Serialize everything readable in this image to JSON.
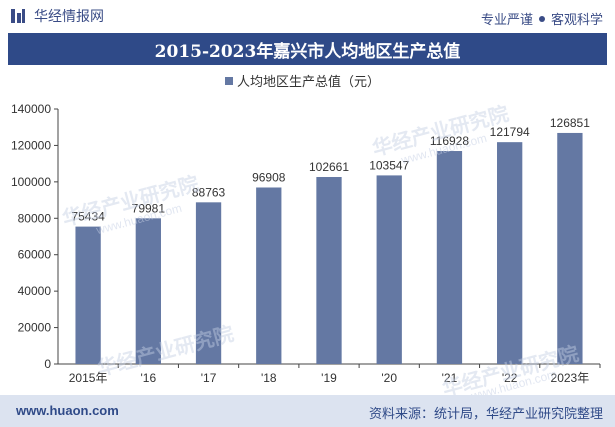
{
  "header": {
    "brand": "华经情报网",
    "tagline_left": "专业严谨",
    "tagline_right": "客观科学"
  },
  "title": "2015-2023年嘉兴市人均地区生产总值",
  "footer": {
    "site": "www.huaon.com",
    "source": "资料来源：统计局，华经产业研究院整理"
  },
  "watermark": {
    "text": "华经产业研究院",
    "site": "www.huaon.com"
  },
  "colors": {
    "bar": "#6478a3",
    "title_band": "#2f4a88",
    "footer_band": "#dce3f0"
  },
  "chart_data": {
    "type": "bar",
    "title": "2015-2023年嘉兴市人均地区生产总值",
    "categories": [
      "2015年",
      "'16",
      "'17",
      "'18",
      "'19",
      "'20",
      "'21",
      "'22",
      "2023年"
    ],
    "series": [
      {
        "name": "人均地区生产总值（元）",
        "values": [
          75434,
          79981,
          88763,
          96908,
          102661,
          103547,
          116928,
          121794,
          126851
        ]
      }
    ],
    "ylim": [
      0,
      140000
    ],
    "yticks": [
      0,
      20000,
      40000,
      60000,
      80000,
      100000,
      120000,
      140000
    ],
    "grid": false,
    "legend": "top-center",
    "data_labels": true
  }
}
